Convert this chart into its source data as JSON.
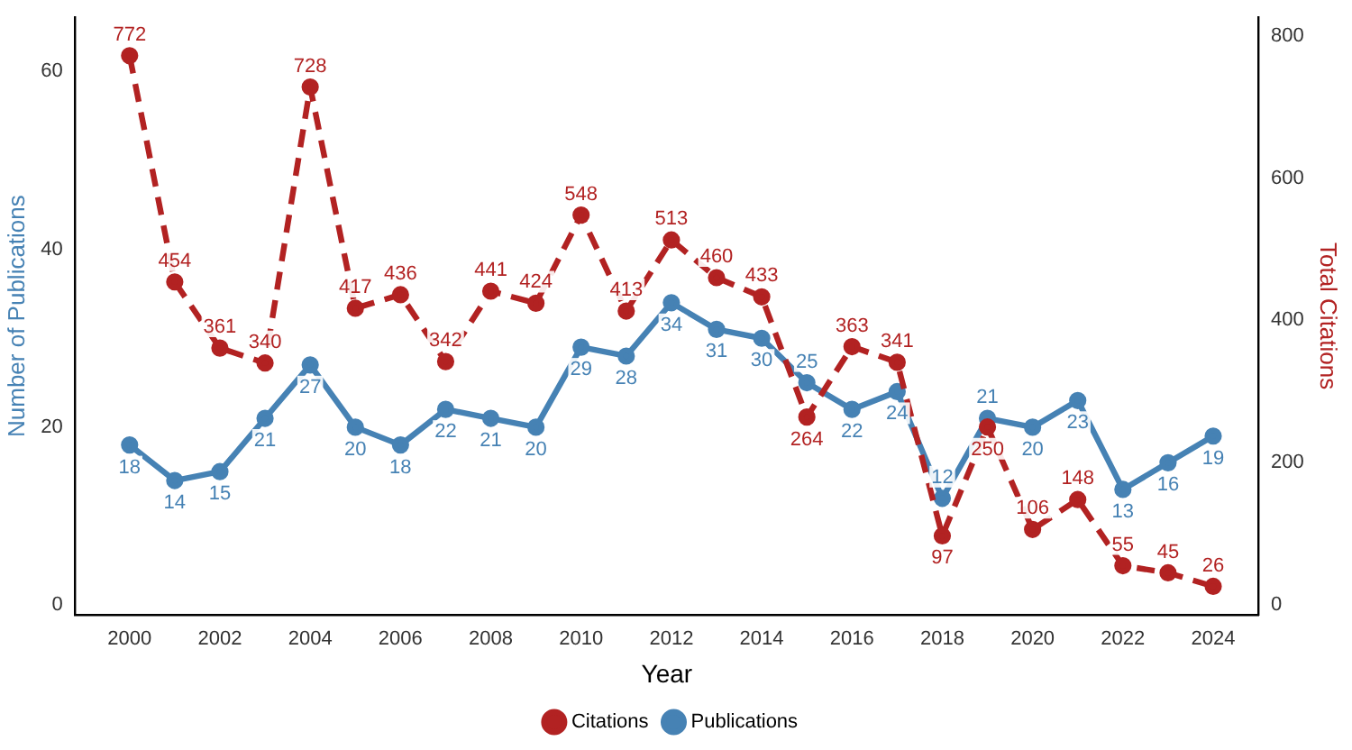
{
  "chart_data": {
    "type": "line",
    "xlabel": "Year",
    "ylabel": "Number of Publications",
    "y2label": "Total Citations",
    "x": [
      2000,
      2001,
      2002,
      2003,
      2004,
      2005,
      2006,
      2007,
      2008,
      2009,
      2010,
      2011,
      2012,
      2013,
      2014,
      2015,
      2016,
      2017,
      2018,
      2019,
      2020,
      2021,
      2022,
      2023,
      2024
    ],
    "series": [
      {
        "name": "Citations",
        "color": "#b22222",
        "axis": "y2",
        "line_style": "dashed",
        "values": [
          772,
          454,
          361,
          340,
          728,
          417,
          436,
          342,
          441,
          424,
          548,
          413,
          513,
          460,
          433,
          264,
          363,
          341,
          97,
          250,
          106,
          148,
          55,
          45,
          26
        ]
      },
      {
        "name": "Publications",
        "color": "#4682b4",
        "line_style": "solid",
        "values": [
          18,
          14,
          15,
          21,
          27,
          20,
          18,
          22,
          21,
          20,
          29,
          28,
          34,
          31,
          30,
          25,
          22,
          24,
          12,
          21,
          20,
          23,
          13,
          16,
          19
        ]
      }
    ],
    "xlim": [
      1998.8,
      2025
    ],
    "xticks": [
      2000,
      2002,
      2004,
      2006,
      2008,
      2010,
      2012,
      2014,
      2016,
      2018,
      2020,
      2022,
      2024
    ],
    "ylim": [
      -1.1,
      66.1
    ],
    "yticks": [
      0,
      20,
      40,
      60
    ],
    "y2lim": [
      -14,
      826
    ],
    "y2ticks": [
      0,
      200,
      400,
      600,
      800
    ],
    "marker": "circle",
    "data_labels": true,
    "grid": false,
    "legend": "bottom"
  }
}
